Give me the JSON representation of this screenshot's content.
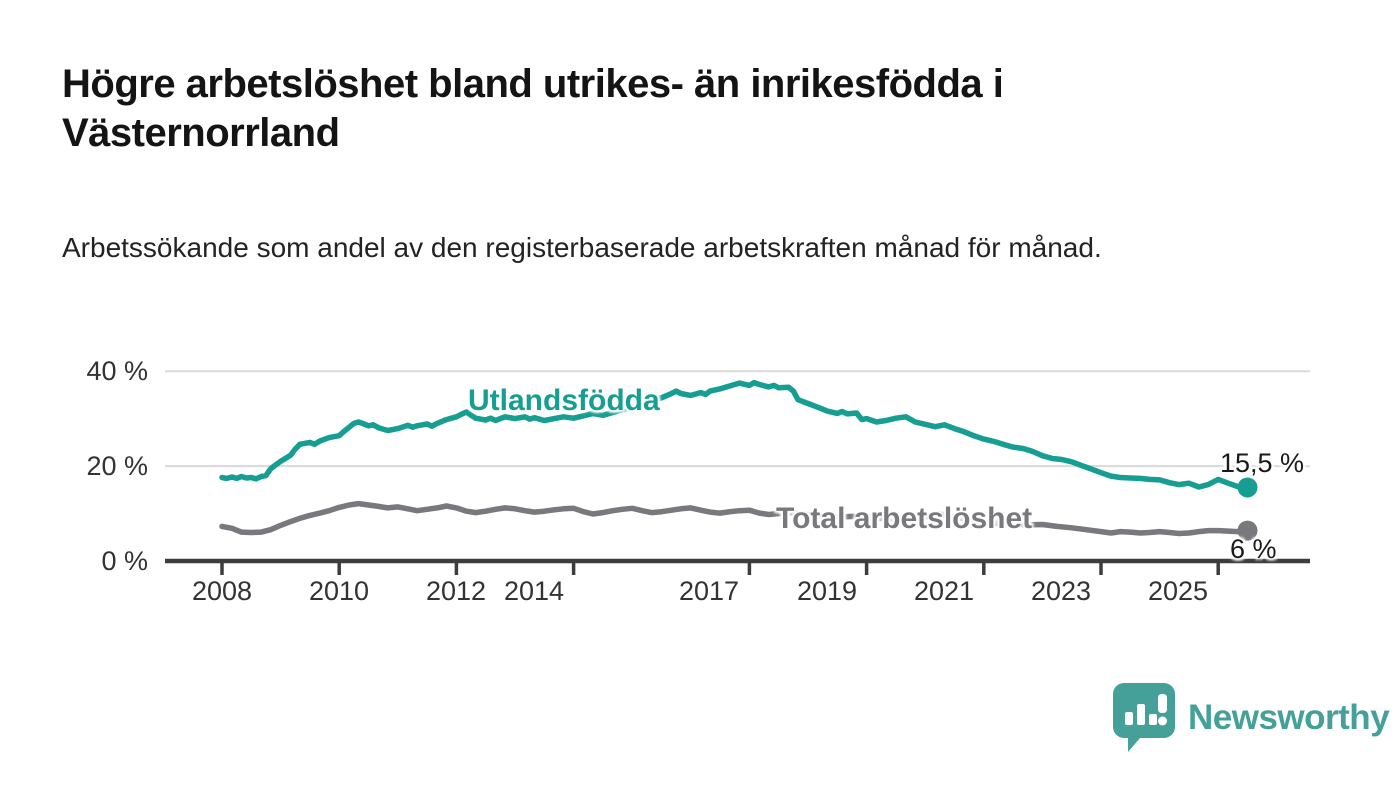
{
  "header": {
    "title": "Högre arbetslöshet bland utrikes- än inrikesfödda i Västernorrland",
    "subtitle": "Arbetssökande som andel av den registerbaserade arbetskraften månad för månad."
  },
  "chart_data": {
    "type": "line",
    "title": "",
    "xlabel": "",
    "ylabel": "",
    "unit": "%",
    "xlim": [
      2007.05,
      2026.4
    ],
    "ylim": [
      0,
      42
    ],
    "grid": "horizontal-light",
    "x_ticks": [
      2008,
      2010,
      2012,
      2014,
      2017,
      2019,
      2021,
      2023,
      2025
    ],
    "x_tick_labels": [
      "2008",
      "2010",
      "2012",
      "2014",
      "2017",
      "2019",
      "2021",
      "2023",
      "2025"
    ],
    "y_tick_values": [
      40,
      20,
      0
    ],
    "y_tick_labels": [
      "40 %",
      "20 %",
      "0 %"
    ],
    "colors": {
      "grid": "#dadada",
      "axis": "#3d3d3d",
      "tick_text": "#333333"
    },
    "series": [
      {
        "name": "Utlandsfödda",
        "color": "#169e92",
        "end_label": "15,5 %",
        "end_value": 15.5,
        "points": [
          [
            2008.0,
            17.6
          ],
          [
            2008.08,
            17.4
          ],
          [
            2008.17,
            17.7
          ],
          [
            2008.25,
            17.4
          ],
          [
            2008.33,
            17.8
          ],
          [
            2008.42,
            17.5
          ],
          [
            2008.5,
            17.6
          ],
          [
            2008.58,
            17.3
          ],
          [
            2008.67,
            17.8
          ],
          [
            2008.75,
            18.0
          ],
          [
            2008.83,
            19.4
          ],
          [
            2008.92,
            20.3
          ],
          [
            2009.0,
            21.0
          ],
          [
            2009.08,
            21.6
          ],
          [
            2009.17,
            22.3
          ],
          [
            2009.25,
            23.6
          ],
          [
            2009.33,
            24.6
          ],
          [
            2009.5,
            25.0
          ],
          [
            2009.58,
            24.6
          ],
          [
            2009.67,
            25.3
          ],
          [
            2009.83,
            26.0
          ],
          [
            2010.0,
            26.4
          ],
          [
            2010.08,
            27.3
          ],
          [
            2010.17,
            28.2
          ],
          [
            2010.25,
            29.0
          ],
          [
            2010.33,
            29.3
          ],
          [
            2010.42,
            28.9
          ],
          [
            2010.5,
            28.5
          ],
          [
            2010.58,
            28.7
          ],
          [
            2010.67,
            28.1
          ],
          [
            2010.75,
            27.8
          ],
          [
            2010.83,
            27.5
          ],
          [
            2011.0,
            27.9
          ],
          [
            2011.17,
            28.6
          ],
          [
            2011.25,
            28.2
          ],
          [
            2011.33,
            28.5
          ],
          [
            2011.5,
            28.9
          ],
          [
            2011.58,
            28.4
          ],
          [
            2011.67,
            29.0
          ],
          [
            2011.75,
            29.4
          ],
          [
            2011.83,
            29.8
          ],
          [
            2012.0,
            30.4
          ],
          [
            2012.08,
            30.9
          ],
          [
            2012.17,
            31.4
          ],
          [
            2012.25,
            30.7
          ],
          [
            2012.33,
            30.1
          ],
          [
            2012.5,
            29.7
          ],
          [
            2012.58,
            30.1
          ],
          [
            2012.67,
            29.6
          ],
          [
            2012.75,
            30.0
          ],
          [
            2012.83,
            30.4
          ],
          [
            2013.0,
            30.0
          ],
          [
            2013.17,
            30.4
          ],
          [
            2013.25,
            29.9
          ],
          [
            2013.33,
            30.2
          ],
          [
            2013.5,
            29.6
          ],
          [
            2013.67,
            30.0
          ],
          [
            2013.83,
            30.4
          ],
          [
            2014.0,
            30.1
          ],
          [
            2014.17,
            30.6
          ],
          [
            2014.33,
            31.1
          ],
          [
            2014.5,
            30.7
          ],
          [
            2014.67,
            31.3
          ],
          [
            2014.83,
            31.9
          ],
          [
            2015.0,
            32.4
          ],
          [
            2015.17,
            33.0
          ],
          [
            2015.33,
            33.7
          ],
          [
            2015.5,
            34.4
          ],
          [
            2015.67,
            35.3
          ],
          [
            2015.75,
            35.8
          ],
          [
            2015.83,
            35.3
          ],
          [
            2016.0,
            34.9
          ],
          [
            2016.17,
            35.5
          ],
          [
            2016.25,
            35.1
          ],
          [
            2016.33,
            35.8
          ],
          [
            2016.5,
            36.3
          ],
          [
            2016.67,
            36.9
          ],
          [
            2016.83,
            37.5
          ],
          [
            2017.0,
            37.0
          ],
          [
            2017.08,
            37.6
          ],
          [
            2017.17,
            37.2
          ],
          [
            2017.33,
            36.7
          ],
          [
            2017.42,
            37.0
          ],
          [
            2017.5,
            36.5
          ],
          [
            2017.67,
            36.6
          ],
          [
            2017.75,
            35.8
          ],
          [
            2017.83,
            34.0
          ],
          [
            2018.0,
            33.2
          ],
          [
            2018.17,
            32.4
          ],
          [
            2018.33,
            31.6
          ],
          [
            2018.5,
            31.1
          ],
          [
            2018.58,
            31.5
          ],
          [
            2018.67,
            31.0
          ],
          [
            2018.83,
            31.2
          ],
          [
            2018.92,
            29.8
          ],
          [
            2019.0,
            30.0
          ],
          [
            2019.17,
            29.3
          ],
          [
            2019.33,
            29.6
          ],
          [
            2019.5,
            30.1
          ],
          [
            2019.67,
            30.4
          ],
          [
            2019.83,
            29.3
          ],
          [
            2020.0,
            28.8
          ],
          [
            2020.17,
            28.3
          ],
          [
            2020.33,
            28.7
          ],
          [
            2020.5,
            27.9
          ],
          [
            2020.67,
            27.2
          ],
          [
            2020.83,
            26.4
          ],
          [
            2021.0,
            25.7
          ],
          [
            2021.17,
            25.2
          ],
          [
            2021.33,
            24.6
          ],
          [
            2021.5,
            24.0
          ],
          [
            2021.67,
            23.7
          ],
          [
            2021.83,
            23.1
          ],
          [
            2022.0,
            22.2
          ],
          [
            2022.17,
            21.6
          ],
          [
            2022.33,
            21.4
          ],
          [
            2022.5,
            20.9
          ],
          [
            2022.67,
            20.1
          ],
          [
            2022.83,
            19.4
          ],
          [
            2023.0,
            18.6
          ],
          [
            2023.17,
            17.9
          ],
          [
            2023.33,
            17.6
          ],
          [
            2023.5,
            17.5
          ],
          [
            2023.67,
            17.4
          ],
          [
            2023.83,
            17.2
          ],
          [
            2024.0,
            17.1
          ],
          [
            2024.17,
            16.5
          ],
          [
            2024.33,
            16.1
          ],
          [
            2024.5,
            16.4
          ],
          [
            2024.67,
            15.6
          ],
          [
            2024.83,
            16.1
          ],
          [
            2025.0,
            17.2
          ],
          [
            2025.17,
            16.4
          ],
          [
            2025.33,
            15.7
          ],
          [
            2025.5,
            15.5
          ]
        ]
      },
      {
        "name": "Total arbetslöshet",
        "color": "#78787d",
        "end_label": "6 %",
        "end_value": 6,
        "points": [
          [
            2008.0,
            7.3
          ],
          [
            2008.17,
            6.9
          ],
          [
            2008.33,
            6.1
          ],
          [
            2008.5,
            6.0
          ],
          [
            2008.67,
            6.1
          ],
          [
            2008.83,
            6.6
          ],
          [
            2009.0,
            7.5
          ],
          [
            2009.17,
            8.3
          ],
          [
            2009.33,
            9.0
          ],
          [
            2009.5,
            9.6
          ],
          [
            2009.67,
            10.1
          ],
          [
            2009.83,
            10.6
          ],
          [
            2010.0,
            11.3
          ],
          [
            2010.17,
            11.8
          ],
          [
            2010.33,
            12.1
          ],
          [
            2010.5,
            11.8
          ],
          [
            2010.67,
            11.5
          ],
          [
            2010.83,
            11.2
          ],
          [
            2011.0,
            11.4
          ],
          [
            2011.17,
            11.0
          ],
          [
            2011.33,
            10.6
          ],
          [
            2011.5,
            10.9
          ],
          [
            2011.67,
            11.2
          ],
          [
            2011.83,
            11.6
          ],
          [
            2012.0,
            11.2
          ],
          [
            2012.17,
            10.5
          ],
          [
            2012.33,
            10.2
          ],
          [
            2012.5,
            10.5
          ],
          [
            2012.67,
            10.9
          ],
          [
            2012.83,
            11.2
          ],
          [
            2013.0,
            11.0
          ],
          [
            2013.17,
            10.6
          ],
          [
            2013.33,
            10.3
          ],
          [
            2013.5,
            10.5
          ],
          [
            2013.67,
            10.8
          ],
          [
            2013.83,
            11.0
          ],
          [
            2014.0,
            11.1
          ],
          [
            2014.17,
            10.4
          ],
          [
            2014.33,
            9.9
          ],
          [
            2014.5,
            10.2
          ],
          [
            2014.67,
            10.6
          ],
          [
            2014.83,
            10.9
          ],
          [
            2015.0,
            11.1
          ],
          [
            2015.17,
            10.6
          ],
          [
            2015.33,
            10.2
          ],
          [
            2015.5,
            10.4
          ],
          [
            2015.67,
            10.7
          ],
          [
            2015.83,
            11.0
          ],
          [
            2016.0,
            11.2
          ],
          [
            2016.17,
            10.7
          ],
          [
            2016.33,
            10.3
          ],
          [
            2016.5,
            10.1
          ],
          [
            2016.67,
            10.4
          ],
          [
            2016.83,
            10.6
          ],
          [
            2017.0,
            10.7
          ],
          [
            2017.17,
            10.1
          ],
          [
            2017.33,
            9.8
          ],
          [
            2017.5,
            10.0
          ],
          [
            2017.67,
            10.2
          ],
          [
            2017.83,
            10.0
          ],
          [
            2018.0,
            9.8
          ],
          [
            2018.25,
            9.4
          ],
          [
            2018.5,
            9.2
          ],
          [
            2018.75,
            9.4
          ],
          [
            2019.0,
            9.3
          ],
          [
            2019.25,
            9.0
          ],
          [
            2019.5,
            8.9
          ],
          [
            2019.75,
            9.1
          ],
          [
            2020.0,
            9.3
          ],
          [
            2020.25,
            9.9
          ],
          [
            2020.5,
            9.3
          ],
          [
            2020.75,
            8.7
          ],
          [
            2021.0,
            8.3
          ],
          [
            2021.25,
            7.9
          ],
          [
            2021.5,
            7.7
          ],
          [
            2021.75,
            7.6
          ],
          [
            2022.0,
            7.7
          ],
          [
            2022.25,
            7.3
          ],
          [
            2022.5,
            7.0
          ],
          [
            2022.75,
            6.6
          ],
          [
            2023.0,
            6.2
          ],
          [
            2023.17,
            5.9
          ],
          [
            2023.33,
            6.2
          ],
          [
            2023.5,
            6.1
          ],
          [
            2023.67,
            5.9
          ],
          [
            2023.83,
            6.0
          ],
          [
            2024.0,
            6.2
          ],
          [
            2024.17,
            6.0
          ],
          [
            2024.33,
            5.8
          ],
          [
            2024.5,
            5.9
          ],
          [
            2024.67,
            6.2
          ],
          [
            2024.83,
            6.4
          ],
          [
            2025.0,
            6.4
          ],
          [
            2025.17,
            6.3
          ],
          [
            2025.33,
            6.2
          ],
          [
            2025.5,
            6.4
          ]
        ]
      }
    ],
    "legend_position": "inline-labels"
  },
  "footer": {
    "brand": "Newsworthy",
    "brand_color": "#45a09a",
    "logo_icon": "speech-bubble-bar-chart-exclamation"
  }
}
